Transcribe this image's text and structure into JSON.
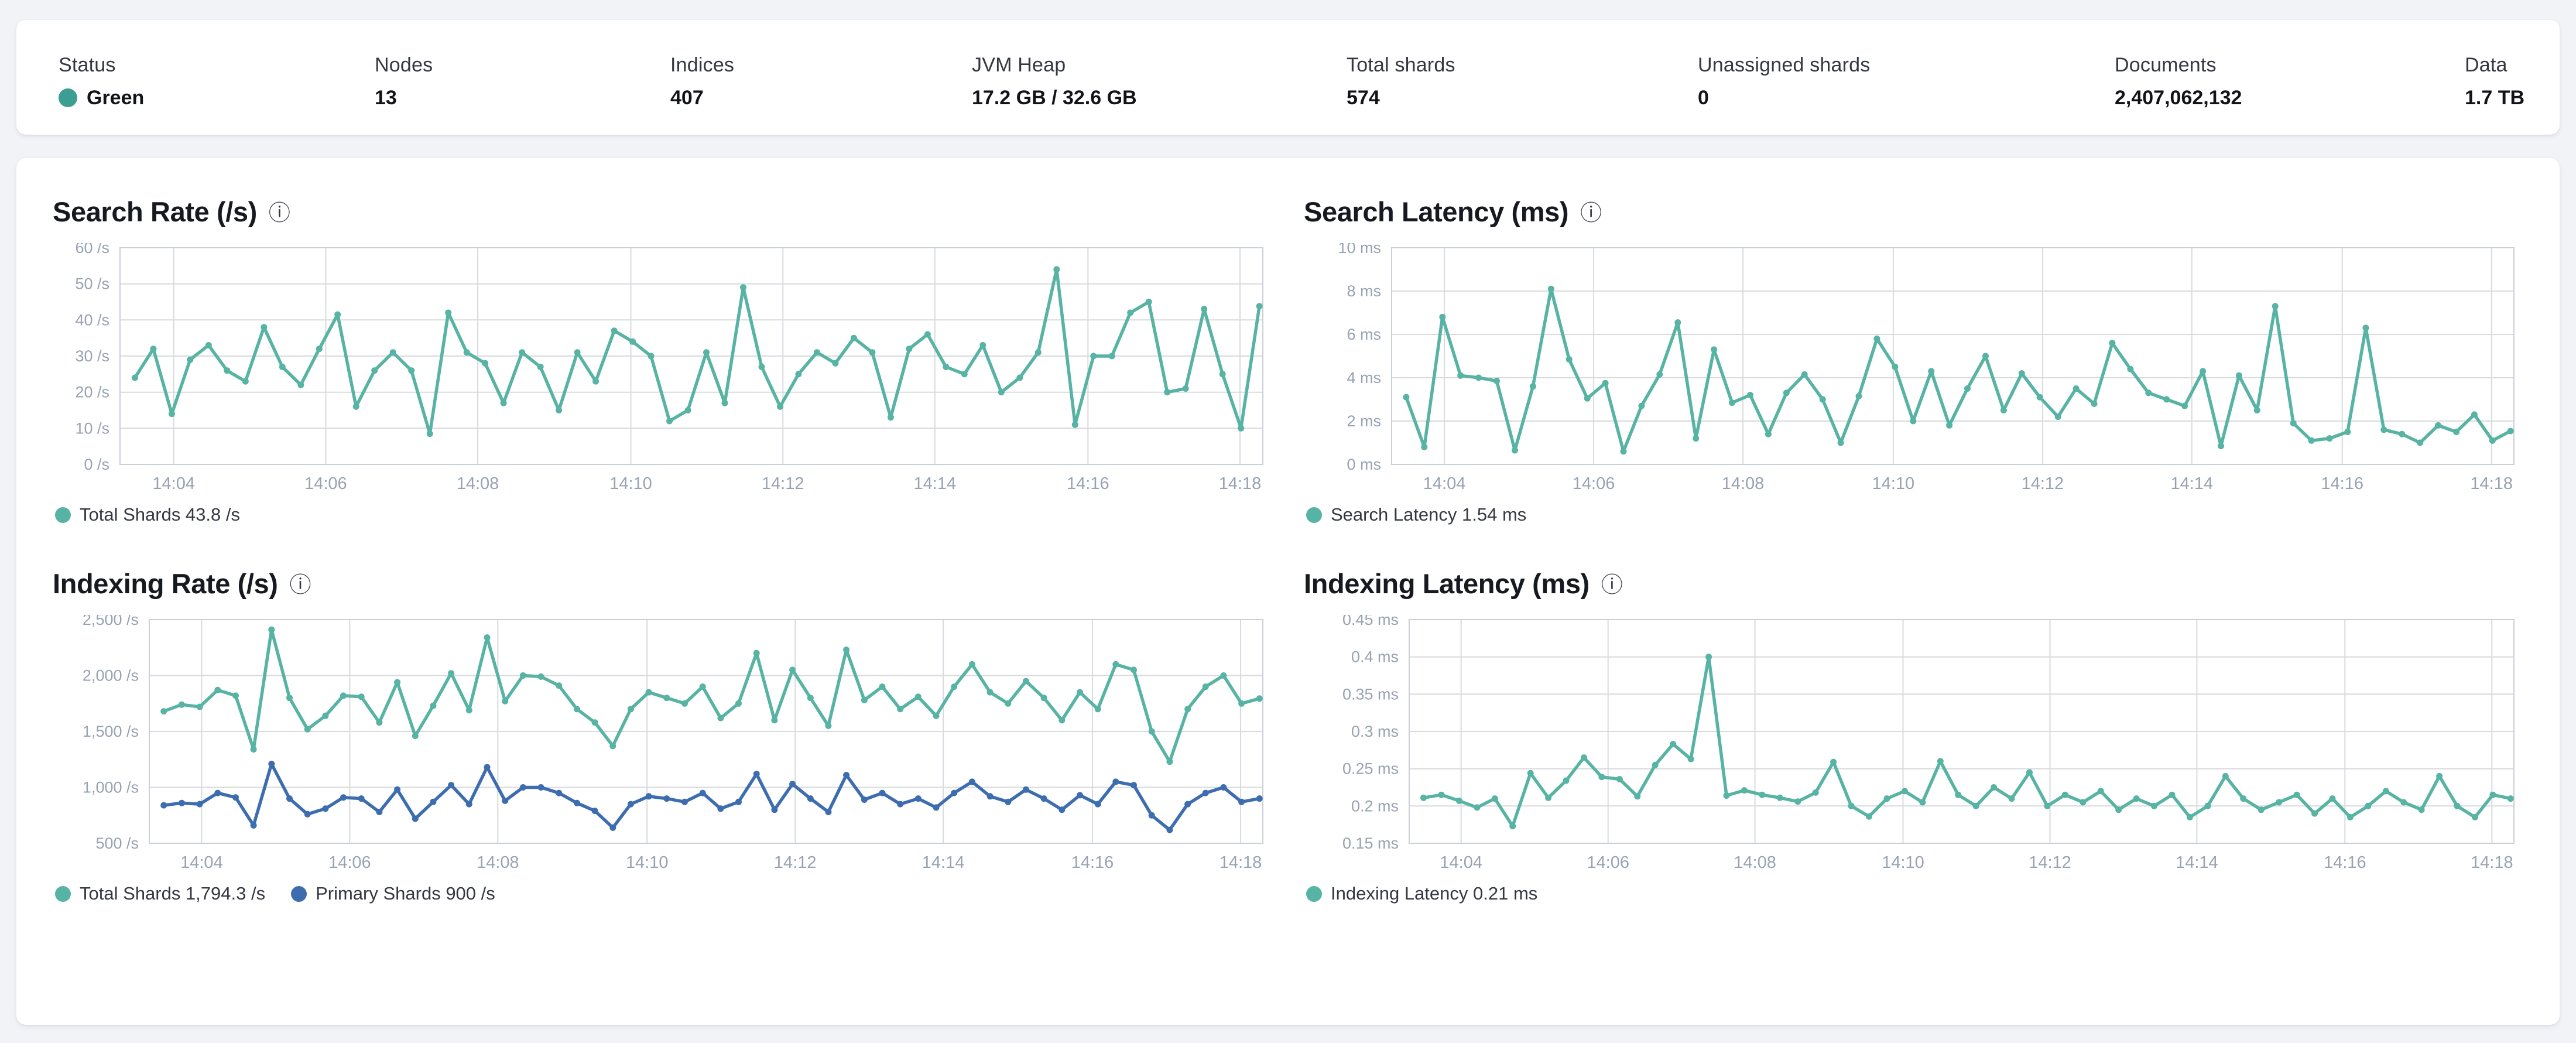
{
  "topbar": {
    "stats": [
      {
        "label": "Status",
        "value": "Green"
      },
      {
        "label": "Nodes",
        "value": "13"
      },
      {
        "label": "Indices",
        "value": "407"
      },
      {
        "label": "JVM Heap",
        "value": "17.2 GB / 32.6 GB"
      },
      {
        "label": "Total shards",
        "value": "574"
      },
      {
        "label": "Unassigned shards",
        "value": "0"
      },
      {
        "label": "Documents",
        "value": "2,407,062,132"
      },
      {
        "label": "Data",
        "value": "1.7 TB"
      }
    ]
  },
  "icons": {
    "info": "ⓘ"
  },
  "colors": {
    "status_green": "#3C9E92",
    "teal": "#57B3A3",
    "blue": "#3D6DAF",
    "grid": "#D8DADD",
    "plot_border": "#CBCFD6",
    "axis_text": "#98A2B3"
  },
  "chart_data": [
    {
      "type": "line",
      "title": "Search Rate (/s)",
      "ylim": [
        0,
        60
      ],
      "grid": true,
      "legend_position": "bottom",
      "x_range": [
        "14:03:30",
        "14:18:15"
      ],
      "y_ticks": [
        {
          "value": 0,
          "label": "0 /s"
        },
        {
          "value": 10,
          "label": "10 /s"
        },
        {
          "value": 20,
          "label": "20 /s"
        },
        {
          "value": 30,
          "label": "30 /s"
        },
        {
          "value": 40,
          "label": "40 /s"
        },
        {
          "value": 50,
          "label": "50 /s"
        },
        {
          "value": 60,
          "label": "60 /s"
        }
      ],
      "x_ticks": [
        {
          "f": 0.047,
          "label": "14:04"
        },
        {
          "f": 0.18,
          "label": "14:06"
        },
        {
          "f": 0.313,
          "label": "14:08"
        },
        {
          "f": 0.447,
          "label": "14:10"
        },
        {
          "f": 0.58,
          "label": "14:12"
        },
        {
          "f": 0.713,
          "label": "14:14"
        },
        {
          "f": 0.847,
          "label": "14:16"
        },
        {
          "f": 0.98,
          "label": "14:18"
        }
      ],
      "series": [
        {
          "name": "Total Shards",
          "legend": "Total Shards 43.8 /s",
          "color": "#57B3A3",
          "values": [
            24,
            32,
            14,
            29,
            33,
            26,
            23,
            38,
            27,
            22,
            32,
            41.5,
            16,
            26,
            31,
            26,
            8.5,
            42,
            31,
            28,
            17,
            31,
            27,
            15,
            31,
            23,
            37,
            34,
            30,
            12,
            15,
            31,
            17,
            49,
            27,
            16,
            25,
            31,
            28,
            35,
            31,
            13,
            32,
            36,
            27,
            25,
            33,
            20,
            24,
            31,
            54,
            11,
            30,
            30,
            42,
            45,
            20,
            21,
            43,
            25,
            10,
            43.8
          ]
        }
      ]
    },
    {
      "type": "line",
      "title": "Search Latency (ms)",
      "ylim": [
        0,
        10
      ],
      "grid": true,
      "legend_position": "bottom",
      "x_range": [
        "14:03:30",
        "14:18:15"
      ],
      "y_ticks": [
        {
          "value": 0,
          "label": "0 ms"
        },
        {
          "value": 2,
          "label": "2 ms"
        },
        {
          "value": 4,
          "label": "4 ms"
        },
        {
          "value": 6,
          "label": "6 ms"
        },
        {
          "value": 8,
          "label": "8 ms"
        },
        {
          "value": 10,
          "label": "10 ms"
        }
      ],
      "x_ticks": [
        {
          "f": 0.047,
          "label": "14:04"
        },
        {
          "f": 0.18,
          "label": "14:06"
        },
        {
          "f": 0.313,
          "label": "14:08"
        },
        {
          "f": 0.447,
          "label": "14:10"
        },
        {
          "f": 0.58,
          "label": "14:12"
        },
        {
          "f": 0.713,
          "label": "14:14"
        },
        {
          "f": 0.847,
          "label": "14:16"
        },
        {
          "f": 0.98,
          "label": "14:18"
        }
      ],
      "series": [
        {
          "name": "Search Latency",
          "legend": "Search Latency 1.54 ms",
          "color": "#57B3A3",
          "values": [
            3.1,
            0.8,
            6.8,
            4.1,
            4.0,
            3.85,
            0.65,
            3.6,
            8.1,
            4.85,
            3.05,
            3.75,
            0.6,
            2.7,
            4.15,
            6.55,
            1.2,
            5.3,
            2.85,
            3.2,
            1.4,
            3.3,
            4.15,
            3.0,
            1.0,
            3.15,
            5.8,
            4.5,
            2.0,
            4.3,
            1.8,
            3.5,
            5.0,
            2.5,
            4.2,
            3.1,
            2.2,
            3.5,
            2.8,
            5.6,
            4.4,
            3.3,
            3.0,
            2.7,
            4.3,
            0.85,
            4.1,
            2.5,
            7.3,
            1.9,
            1.1,
            1.2,
            1.5,
            6.3,
            1.6,
            1.4,
            1.0,
            1.8,
            1.5,
            2.3,
            1.1,
            1.54
          ]
        }
      ]
    },
    {
      "type": "line",
      "title": "Indexing Rate (/s)",
      "ylim": [
        500,
        2500
      ],
      "grid": true,
      "legend_position": "bottom",
      "x_range": [
        "14:03:30",
        "14:18:15"
      ],
      "y_ticks": [
        {
          "value": 500,
          "label": "500 /s"
        },
        {
          "value": 1000,
          "label": "1,000 /s"
        },
        {
          "value": 1500,
          "label": "1,500 /s"
        },
        {
          "value": 2000,
          "label": "2,000 /s"
        },
        {
          "value": 2500,
          "label": "2,500 /s"
        }
      ],
      "x_ticks": [
        {
          "f": 0.047,
          "label": "14:04"
        },
        {
          "f": 0.18,
          "label": "14:06"
        },
        {
          "f": 0.313,
          "label": "14:08"
        },
        {
          "f": 0.447,
          "label": "14:10"
        },
        {
          "f": 0.58,
          "label": "14:12"
        },
        {
          "f": 0.713,
          "label": "14:14"
        },
        {
          "f": 0.847,
          "label": "14:16"
        },
        {
          "f": 0.98,
          "label": "14:18"
        }
      ],
      "series": [
        {
          "name": "Total Shards",
          "legend": "Total Shards 1,794.3 /s",
          "color": "#57B3A3",
          "values": [
            1680,
            1740,
            1720,
            1870,
            1820,
            1340,
            2410,
            1800,
            1520,
            1640,
            1820,
            1810,
            1580,
            1940,
            1460,
            1730,
            2020,
            1690,
            2340,
            1770,
            2000,
            1990,
            1910,
            1700,
            1580,
            1370,
            1700,
            1850,
            1800,
            1750,
            1900,
            1620,
            1750,
            2200,
            1600,
            2050,
            1800,
            1550,
            2230,
            1780,
            1900,
            1700,
            1810,
            1640,
            1900,
            2100,
            1850,
            1750,
            1950,
            1800,
            1600,
            1850,
            1700,
            2100,
            2050,
            1500,
            1230,
            1700,
            1900,
            2000,
            1750,
            1794.3
          ]
        },
        {
          "name": "Primary Shards",
          "legend": "Primary Shards 900 /s",
          "color": "#3D6DAF",
          "values": [
            840,
            860,
            850,
            950,
            910,
            660,
            1210,
            900,
            760,
            810,
            910,
            900,
            780,
            980,
            720,
            870,
            1020,
            850,
            1180,
            880,
            1000,
            1000,
            950,
            860,
            790,
            640,
            850,
            920,
            900,
            870,
            950,
            810,
            870,
            1120,
            800,
            1030,
            900,
            780,
            1110,
            890,
            950,
            850,
            900,
            820,
            950,
            1050,
            920,
            870,
            980,
            900,
            800,
            930,
            850,
            1050,
            1020,
            750,
            620,
            850,
            950,
            1000,
            870,
            900
          ]
        }
      ]
    },
    {
      "type": "line",
      "title": "Indexing Latency (ms)",
      "ylim": [
        0.15,
        0.45
      ],
      "grid": true,
      "legend_position": "bottom",
      "x_range": [
        "14:03:30",
        "14:18:15"
      ],
      "y_ticks": [
        {
          "value": 0.15,
          "label": "0.15 ms"
        },
        {
          "value": 0.2,
          "label": "0.2 ms"
        },
        {
          "value": 0.25,
          "label": "0.25 ms"
        },
        {
          "value": 0.3,
          "label": "0.3 ms"
        },
        {
          "value": 0.35,
          "label": "0.35 ms"
        },
        {
          "value": 0.4,
          "label": "0.4 ms"
        },
        {
          "value": 0.45,
          "label": "0.45 ms"
        }
      ],
      "x_ticks": [
        {
          "f": 0.047,
          "label": "14:04"
        },
        {
          "f": 0.18,
          "label": "14:06"
        },
        {
          "f": 0.313,
          "label": "14:08"
        },
        {
          "f": 0.447,
          "label": "14:10"
        },
        {
          "f": 0.58,
          "label": "14:12"
        },
        {
          "f": 0.713,
          "label": "14:14"
        },
        {
          "f": 0.847,
          "label": "14:16"
        },
        {
          "f": 0.98,
          "label": "14:18"
        }
      ],
      "series": [
        {
          "name": "Indexing Latency",
          "legend": "Indexing Latency 0.21 ms",
          "color": "#57B3A3",
          "values": [
            0.211,
            0.215,
            0.207,
            0.198,
            0.21,
            0.173,
            0.244,
            0.211,
            0.234,
            0.265,
            0.239,
            0.236,
            0.213,
            0.255,
            0.283,
            0.263,
            0.4,
            0.214,
            0.221,
            0.215,
            0.211,
            0.206,
            0.218,
            0.259,
            0.2,
            0.186,
            0.21,
            0.22,
            0.205,
            0.26,
            0.215,
            0.2,
            0.225,
            0.21,
            0.245,
            0.2,
            0.215,
            0.205,
            0.22,
            0.195,
            0.21,
            0.2,
            0.215,
            0.185,
            0.2,
            0.24,
            0.21,
            0.195,
            0.205,
            0.215,
            0.19,
            0.21,
            0.185,
            0.2,
            0.22,
            0.205,
            0.195,
            0.24,
            0.2,
            0.185,
            0.215,
            0.21
          ]
        }
      ]
    }
  ]
}
